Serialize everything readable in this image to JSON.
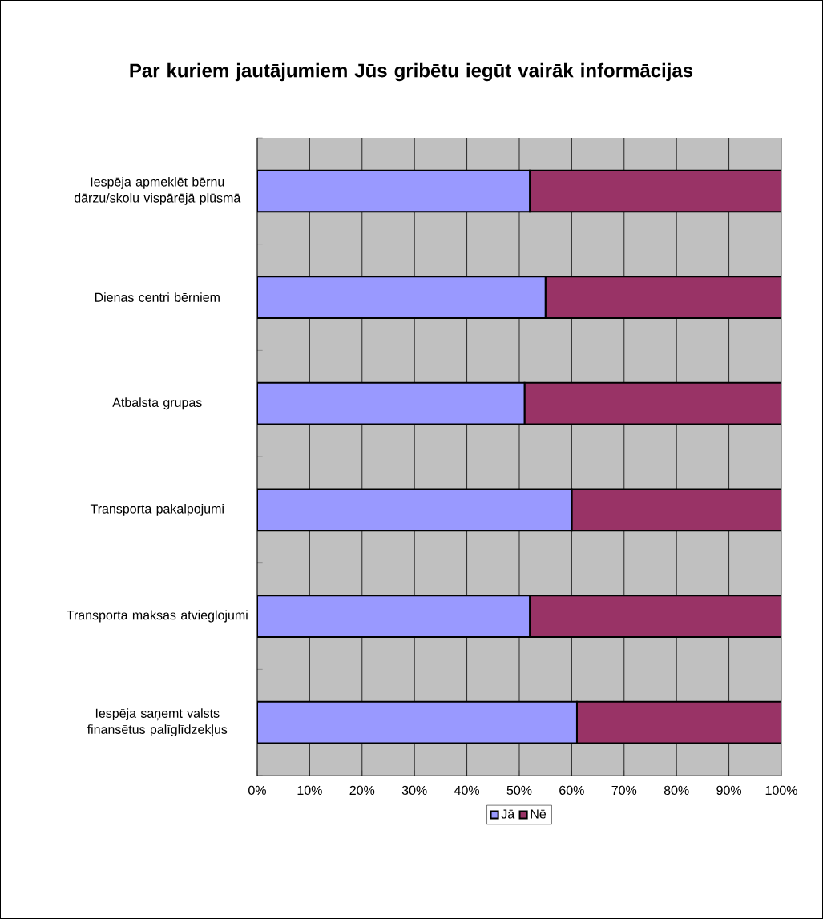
{
  "chart_data": {
    "type": "bar",
    "orientation": "horizontal",
    "stacked": true,
    "title": "Par kuriem jautājumiem Jūs gribētu iegūt vairāk informācijas",
    "categories": [
      "Iespēja apmeklēt bērnu dārzu/skolu vispārējā plūsmā",
      "Dienas centri bērniem",
      "Atbalsta grupas",
      "Transporta pakalpojumi",
      "Transporta maksas atvieglojumi",
      "Iespēja saņemt valsts finansētus palīglīdzekļus"
    ],
    "series": [
      {
        "name": "Jā",
        "color": "#9999ff",
        "values": [
          52,
          55,
          51,
          60,
          52,
          61
        ]
      },
      {
        "name": "Nē",
        "color": "#993366",
        "values": [
          48,
          45,
          49,
          40,
          48,
          39
        ]
      }
    ],
    "xlim": [
      0,
      100
    ],
    "xticks": [
      {
        "value": 0,
        "label": "0%"
      },
      {
        "value": 10,
        "label": "10%"
      },
      {
        "value": 20,
        "label": "20%"
      },
      {
        "value": 30,
        "label": "30%"
      },
      {
        "value": 40,
        "label": "40%"
      },
      {
        "value": 50,
        "label": "50%"
      },
      {
        "value": 60,
        "label": "60%"
      },
      {
        "value": 70,
        "label": "70%"
      },
      {
        "value": 80,
        "label": "80%"
      },
      {
        "value": 90,
        "label": "90%"
      },
      {
        "value": 100,
        "label": "100%"
      }
    ],
    "grid": "x",
    "legend": "bottom"
  }
}
